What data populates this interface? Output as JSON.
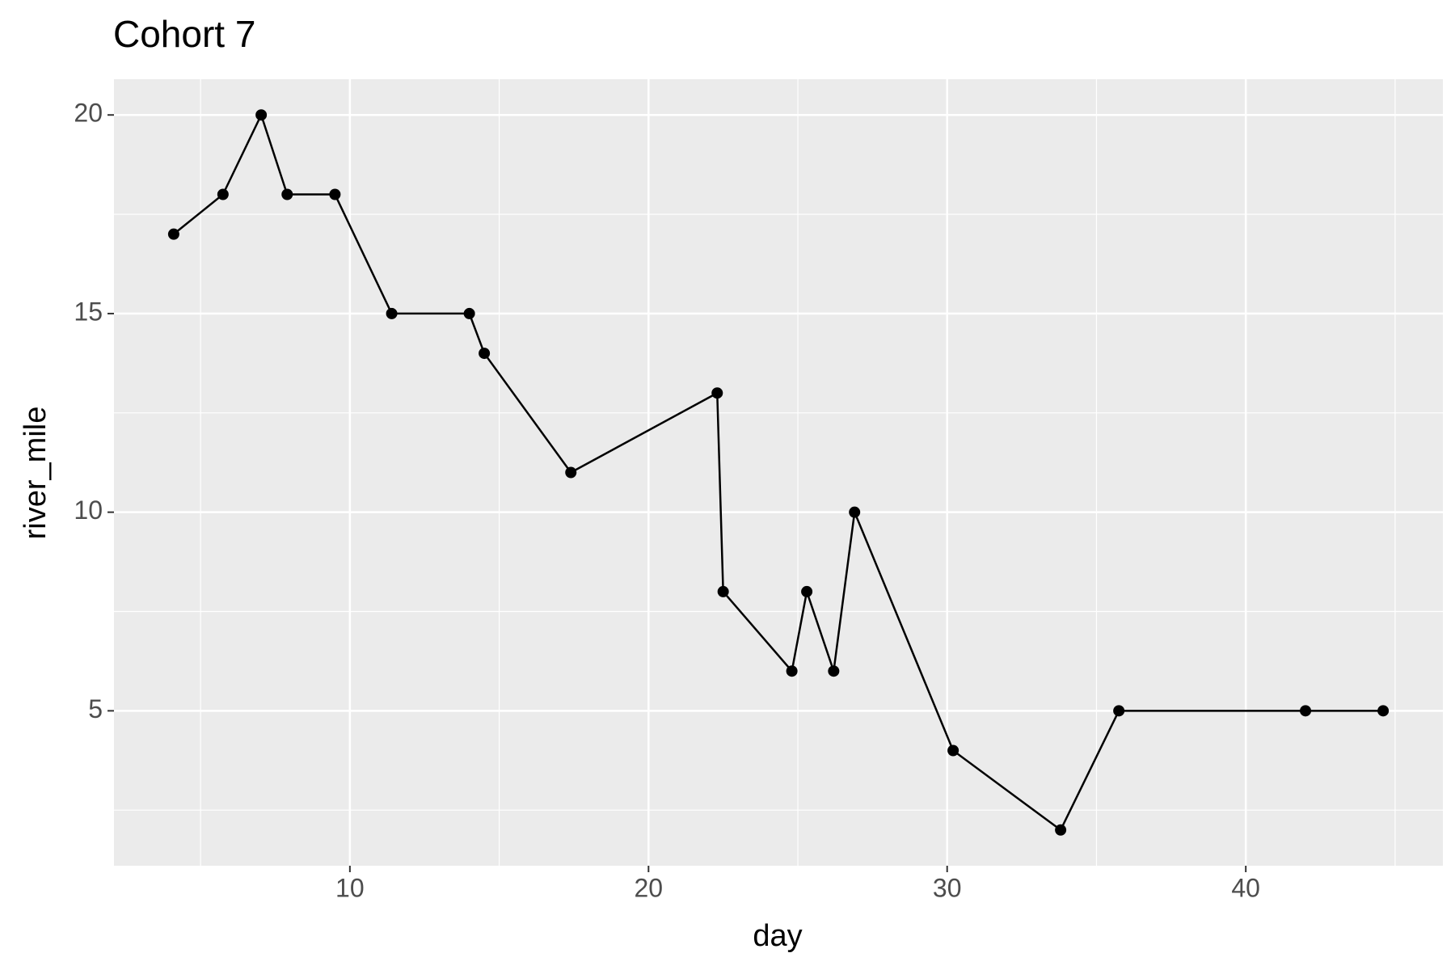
{
  "chart_data": {
    "type": "line",
    "title": "Cohort 7",
    "x_label": "day",
    "y_label": "river_mile",
    "x": [
      4.1,
      5.75,
      7.03,
      7.9,
      9.5,
      11.4,
      14.0,
      14.5,
      17.4,
      22.3,
      22.5,
      24.8,
      25.3,
      26.2,
      26.9,
      30.2,
      33.8,
      35.75,
      42.0,
      44.6
    ],
    "series": [
      {
        "name": "river_mile",
        "color": "#000000",
        "values": [
          17,
          18,
          20,
          18,
          18,
          15,
          15,
          14,
          11,
          13,
          8,
          6,
          8,
          6,
          10,
          4,
          2,
          5,
          5,
          5
        ]
      }
    ],
    "xlim": [
      2.1,
      46.6
    ],
    "xticks": [
      10,
      20,
      30,
      40
    ],
    "x_minor_ticks": [
      5,
      15,
      25,
      35,
      45
    ],
    "ylim": [
      1.1,
      20.9
    ],
    "yticks": [
      5,
      10,
      15,
      20
    ],
    "y_minor_ticks": [
      2.5,
      7.5,
      12.5,
      17.5
    ],
    "grid": true,
    "markers": true
  }
}
